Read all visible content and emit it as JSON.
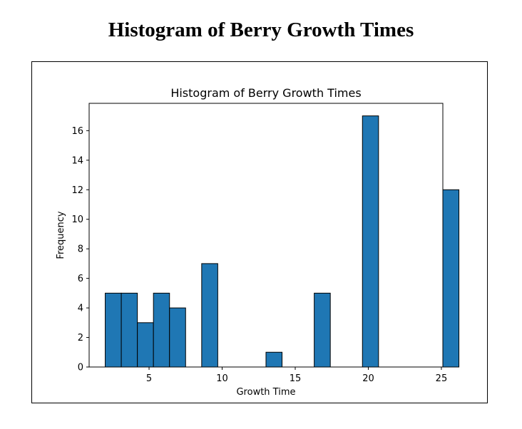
{
  "page": {
    "heading": "Histogram of Berry Growth Times"
  },
  "chart_data": {
    "type": "bar",
    "title": "Histogram of Berry Growth Times",
    "xlabel": "Growth Time",
    "ylabel": "Frequency",
    "xlim": [
      0.9,
      25.1
    ],
    "ylim": [
      0,
      17.85
    ],
    "xticks": [
      5,
      10,
      15,
      20,
      25
    ],
    "yticks": [
      0,
      2,
      4,
      6,
      8,
      10,
      12,
      14,
      16
    ],
    "bin_start": 2,
    "bin_width": 1.1,
    "counts": [
      5,
      5,
      3,
      5,
      4,
      0,
      7,
      0,
      0,
      0,
      1,
      0,
      0,
      5,
      0,
      0,
      17,
      0,
      0,
      0,
      0,
      12
    ],
    "bar_color": "#1f77b4",
    "edge_color": "#000000",
    "grid": false
  }
}
